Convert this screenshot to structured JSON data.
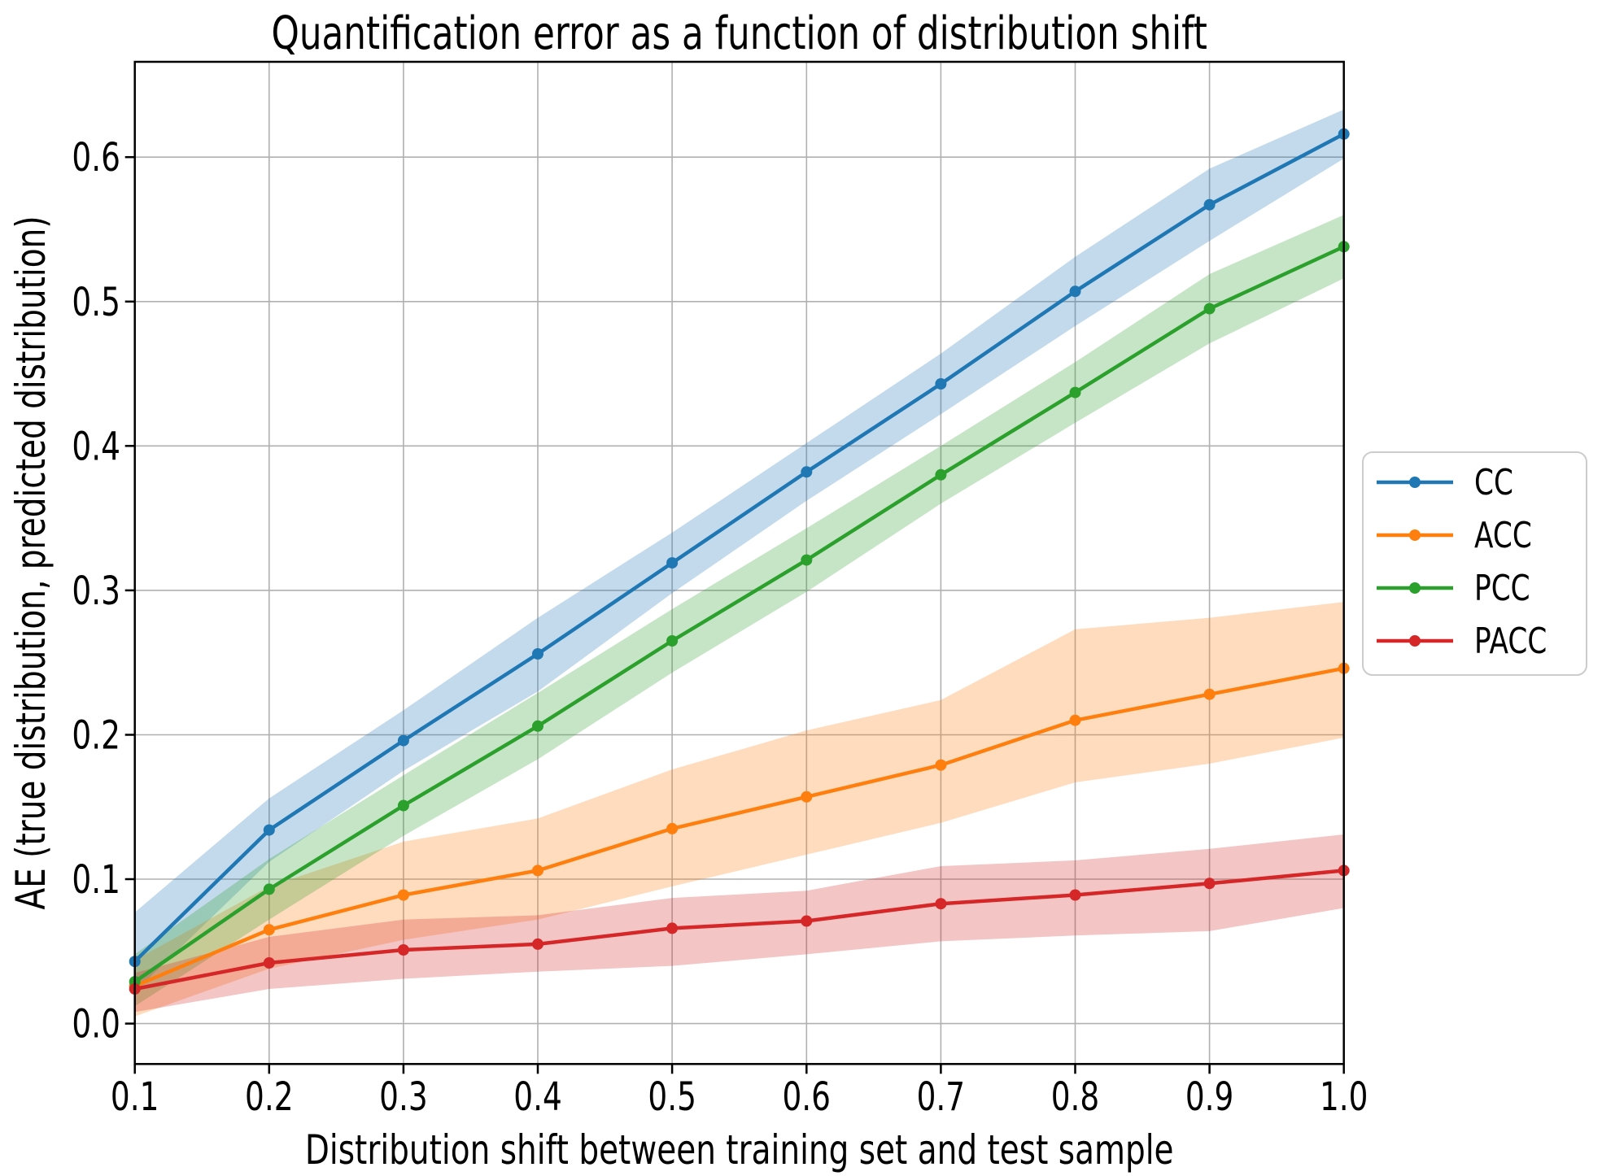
{
  "chart_data": {
    "type": "line",
    "title": "Quantification error as a function of distribution shift",
    "xlabel": "Distribution shift between training set and test sample",
    "ylabel": "AE (true distribution, predicted distribution)",
    "x": [
      0.1,
      0.2,
      0.3,
      0.4,
      0.5,
      0.6,
      0.7,
      0.8,
      0.9,
      1.0
    ],
    "xtick_labels": [
      "0.1",
      "0.2",
      "0.3",
      "0.4",
      "0.5",
      "0.6",
      "0.7",
      "0.8",
      "0.9",
      "1.0"
    ],
    "ytick_values": [
      0.0,
      0.1,
      0.2,
      0.3,
      0.4,
      0.5,
      0.6
    ],
    "ytick_labels": [
      "0.0",
      "0.1",
      "0.2",
      "0.3",
      "0.4",
      "0.5",
      "0.6"
    ],
    "xlim": [
      0.1,
      1.0
    ],
    "ylim": [
      -0.028,
      0.666
    ],
    "grid": true,
    "legend": {
      "position": "outside-right",
      "entries": [
        "CC",
        "ACC",
        "PCC",
        "PACC"
      ]
    },
    "series": [
      {
        "name": "CC",
        "color": "#1f77b4",
        "values": [
          0.043,
          0.134,
          0.196,
          0.256,
          0.319,
          0.382,
          0.443,
          0.507,
          0.567,
          0.616
        ],
        "upper": [
          0.077,
          0.156,
          0.217,
          0.281,
          0.34,
          0.402,
          0.464,
          0.531,
          0.592,
          0.633
        ],
        "lower": [
          0.022,
          0.112,
          0.175,
          0.23,
          0.298,
          0.362,
          0.422,
          0.483,
          0.542,
          0.599
        ]
      },
      {
        "name": "ACC",
        "color": "#ff7f0e",
        "values": [
          0.026,
          0.065,
          0.089,
          0.106,
          0.135,
          0.157,
          0.179,
          0.21,
          0.228,
          0.246
        ],
        "upper": [
          0.044,
          0.095,
          0.126,
          0.142,
          0.176,
          0.203,
          0.224,
          0.273,
          0.281,
          0.292
        ],
        "lower": [
          0.005,
          0.038,
          0.058,
          0.072,
          0.095,
          0.117,
          0.139,
          0.167,
          0.18,
          0.198
        ]
      },
      {
        "name": "PCC",
        "color": "#2ca02c",
        "values": [
          0.029,
          0.093,
          0.151,
          0.206,
          0.265,
          0.321,
          0.38,
          0.437,
          0.495,
          0.538
        ],
        "upper": [
          0.048,
          0.114,
          0.172,
          0.229,
          0.287,
          0.343,
          0.4,
          0.458,
          0.519,
          0.56
        ],
        "lower": [
          0.012,
          0.072,
          0.13,
          0.183,
          0.243,
          0.299,
          0.36,
          0.416,
          0.471,
          0.516
        ]
      },
      {
        "name": "PACC",
        "color": "#d62728",
        "values": [
          0.024,
          0.042,
          0.051,
          0.055,
          0.066,
          0.071,
          0.083,
          0.089,
          0.097,
          0.106
        ],
        "upper": [
          0.035,
          0.06,
          0.072,
          0.075,
          0.087,
          0.092,
          0.109,
          0.113,
          0.121,
          0.131
        ],
        "lower": [
          0.008,
          0.024,
          0.031,
          0.036,
          0.04,
          0.048,
          0.057,
          0.061,
          0.064,
          0.08
        ]
      }
    ],
    "grid_color": "#b0b0b0",
    "spine_color": "#000000",
    "legend_border_color": "#cccccc",
    "background_color": "#ffffff"
  }
}
